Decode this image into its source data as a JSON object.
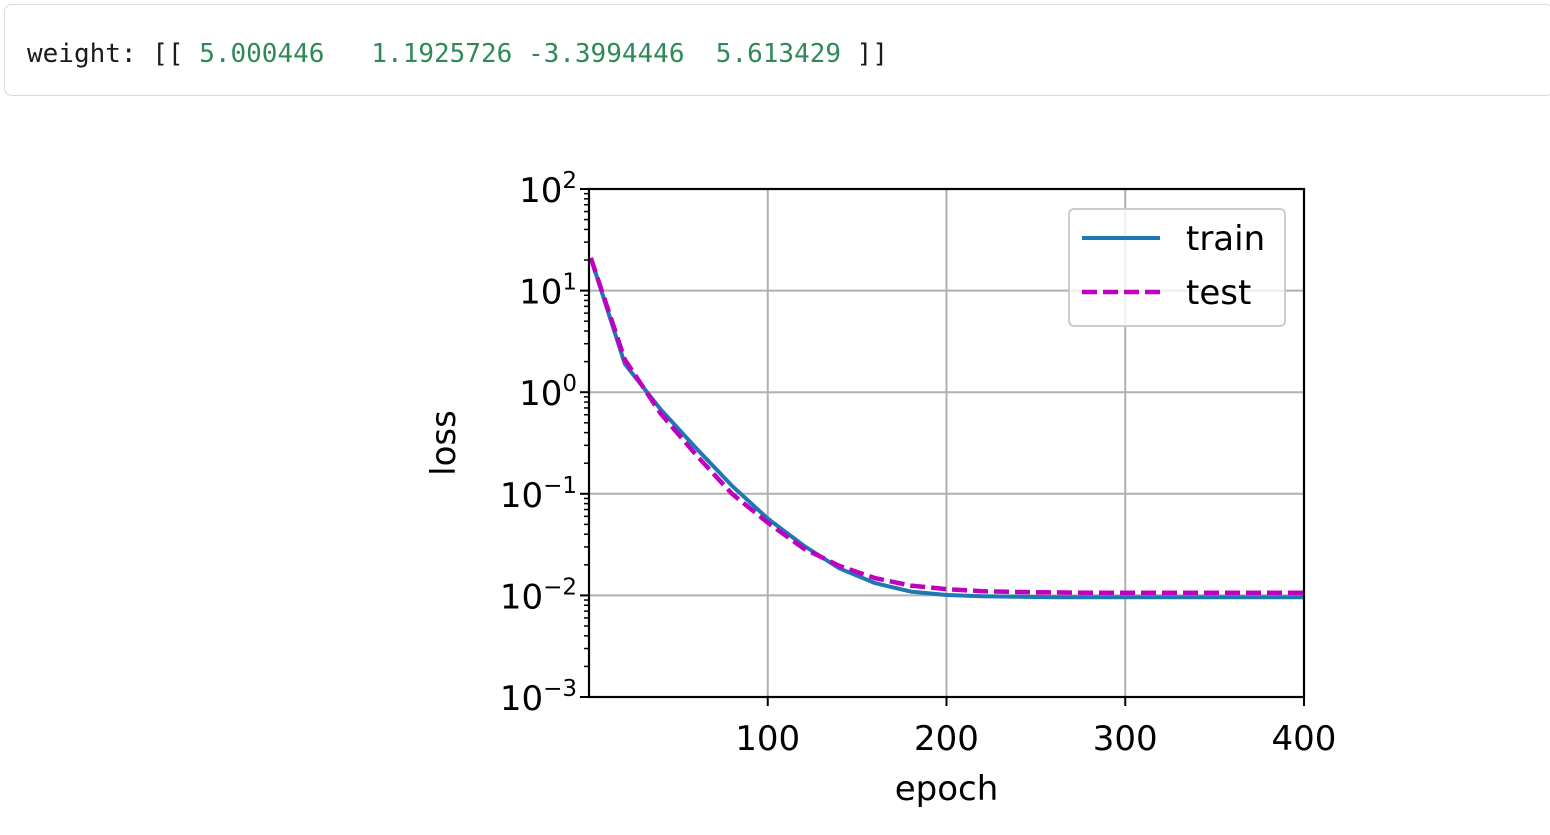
{
  "output": {
    "prefix": "weight: [[ ",
    "weights": [
      "5.000446",
      "1.1925726",
      "-3.3994446",
      "5.613429"
    ],
    "suffix": " ]]"
  },
  "chart_data": {
    "type": "line",
    "xlabel": "epoch",
    "ylabel": "loss",
    "yscale": "log",
    "xlim": [
      0,
      400
    ],
    "ylim": [
      0.001,
      100
    ],
    "xticks": [
      100,
      200,
      300,
      400
    ],
    "xtick_labels": [
      "100",
      "200",
      "300",
      "400"
    ],
    "yticks": [
      0.001,
      0.01,
      0.1,
      1,
      10,
      100
    ],
    "ytick_labels": [
      {
        "base": "10",
        "exp": "−3"
      },
      {
        "base": "10",
        "exp": "−2"
      },
      {
        "base": "10",
        "exp": "−1"
      },
      {
        "base": "10",
        "exp": "0"
      },
      {
        "base": "10",
        "exp": "1"
      },
      {
        "base": "10",
        "exp": "2"
      }
    ],
    "grid": true,
    "legend_position": "top-right",
    "series": [
      {
        "name": "train",
        "color": "#1f77b4",
        "style": "solid",
        "x": [
          1,
          20,
          40,
          60,
          80,
          100,
          120,
          140,
          160,
          180,
          200,
          220,
          240,
          260,
          280,
          300,
          320,
          340,
          360,
          380,
          400
        ],
        "y": [
          21,
          1.9,
          0.68,
          0.28,
          0.12,
          0.057,
          0.031,
          0.0185,
          0.0132,
          0.0109,
          0.0101,
          0.0098,
          0.0097,
          0.0096,
          0.0096,
          0.0096,
          0.0096,
          0.0096,
          0.0096,
          0.0096,
          0.0096
        ]
      },
      {
        "name": "test",
        "color": "#bf00bf",
        "style": "dashed",
        "x": [
          1,
          20,
          40,
          60,
          80,
          100,
          120,
          140,
          160,
          180,
          200,
          220,
          240,
          260,
          280,
          300,
          320,
          340,
          360,
          380,
          400
        ],
        "y": [
          21,
          2.1,
          0.62,
          0.24,
          0.1,
          0.052,
          0.029,
          0.0195,
          0.0148,
          0.0125,
          0.0115,
          0.011,
          0.0108,
          0.0107,
          0.0106,
          0.0106,
          0.0106,
          0.0106,
          0.0106,
          0.0106,
          0.0106
        ]
      }
    ]
  }
}
